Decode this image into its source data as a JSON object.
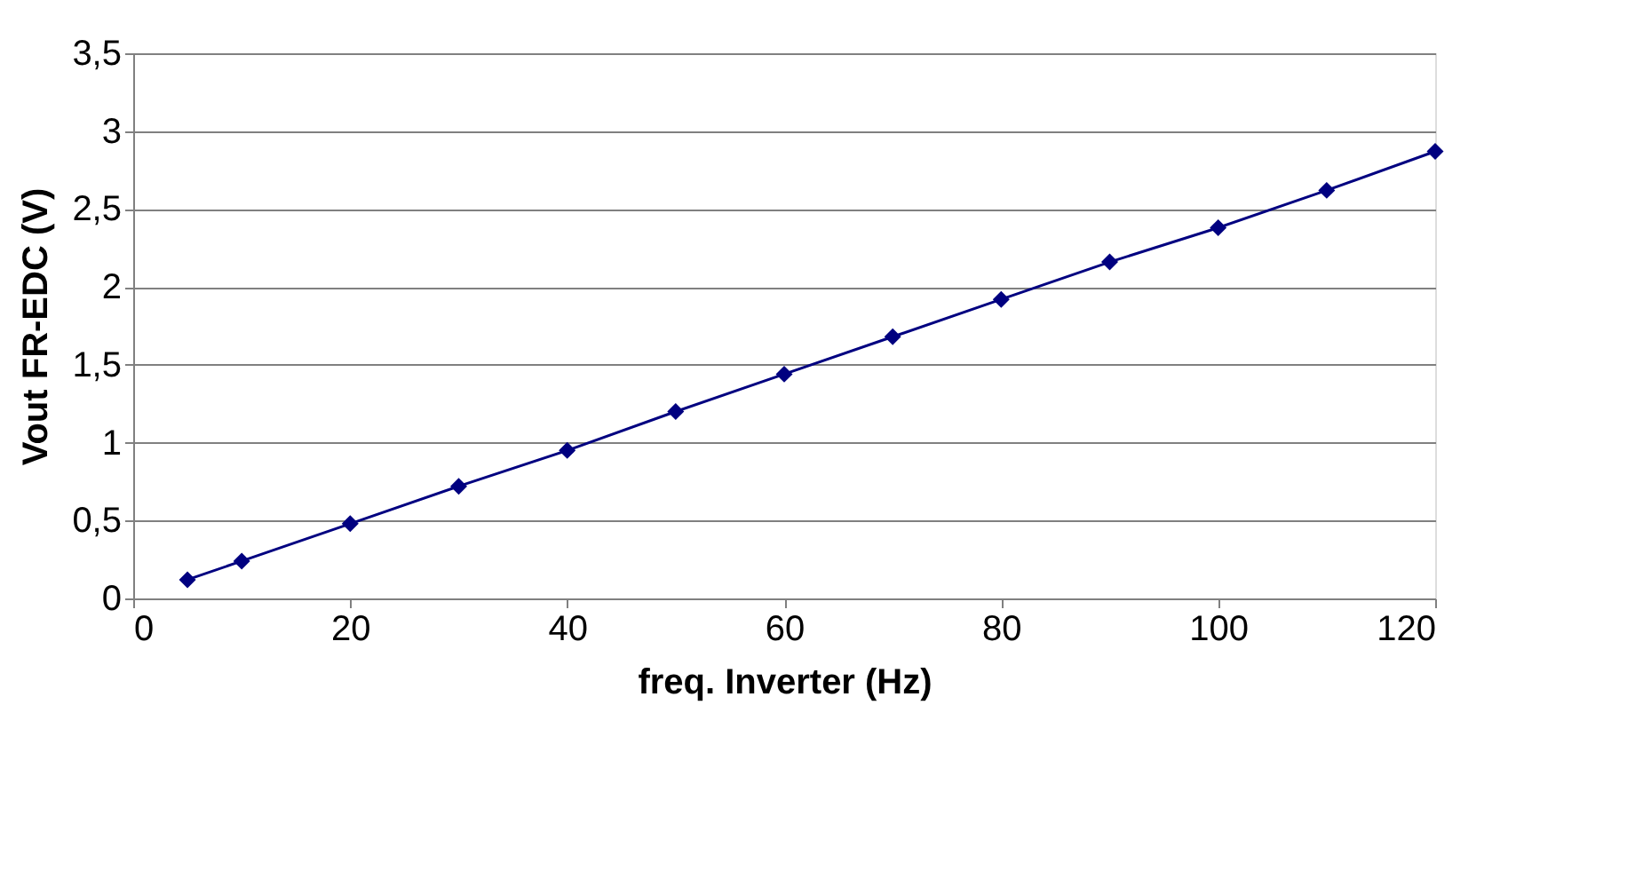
{
  "chart_data": {
    "type": "line",
    "xlabel": "freq. Inverter (Hz)",
    "ylabel": "Vout FR-EDC (V)",
    "x": [
      5,
      10,
      20,
      30,
      40,
      50,
      60,
      70,
      80,
      90,
      100,
      110,
      120
    ],
    "series": [
      {
        "color": "#000080",
        "values": [
          0.12,
          0.24,
          0.48,
          0.72,
          0.95,
          1.2,
          1.44,
          1.68,
          1.92,
          2.16,
          2.38,
          2.62,
          2.87
        ]
      }
    ],
    "xlim": [
      0,
      120
    ],
    "xticks": [
      0,
      20,
      40,
      60,
      80,
      100,
      120
    ],
    "ylim": [
      0,
      3.5
    ],
    "yticks": [
      0,
      {
        "value": 0.5,
        "label": "0,5"
      },
      1,
      {
        "value": 1.5,
        "label": "1,5"
      },
      2,
      {
        "value": 2.5,
        "label": "2,5"
      },
      3,
      {
        "value": 3.5,
        "label": "3,5"
      }
    ],
    "grid": "y",
    "marker": "diamond",
    "line_style": "solid"
  }
}
